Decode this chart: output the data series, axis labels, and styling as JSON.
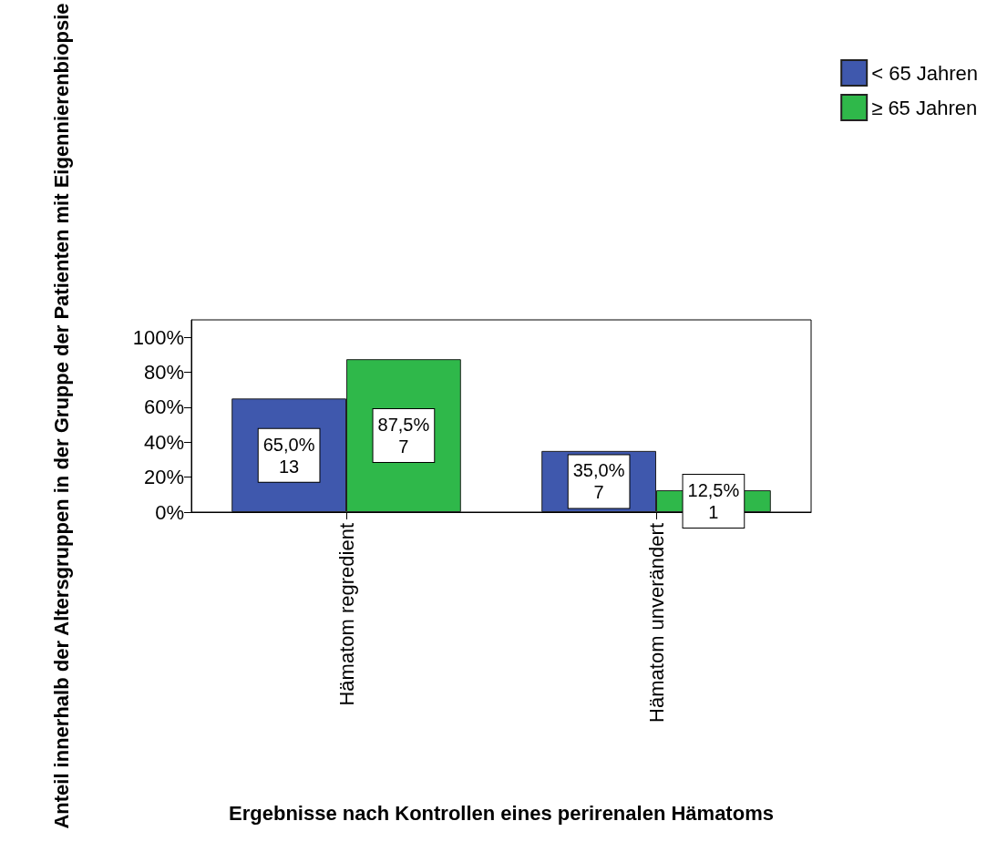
{
  "chart_data": {
    "type": "bar",
    "xlabel": "Ergebnisse nach Kontrollen eines perirenalen Hämatoms",
    "ylabel": "Anteil innerhalb der Altersgruppen in der Gruppe der Patienten mit Eigennierenbiopsie",
    "categories": [
      "Hämatom regredient",
      "Hämatom unverändert"
    ],
    "series": [
      {
        "name": "< 65 Jahren",
        "color": "#3f58ad",
        "values": [
          65,
          35
        ],
        "value_labels": [
          "65,0%\n13",
          "35,0%\n7"
        ]
      },
      {
        "name": "≥ 65 Jahren",
        "color": "#2fb84a",
        "values": [
          87.5,
          12.5
        ],
        "value_labels": [
          "87,5%\n7",
          "12,5%\n1"
        ]
      }
    ],
    "ylim": [
      0,
      110
    ],
    "yticks": [
      {
        "value": 0,
        "label": "0%"
      },
      {
        "value": 20,
        "label": "20%"
      },
      {
        "value": 40,
        "label": "40%"
      },
      {
        "value": 60,
        "label": "60%"
      },
      {
        "value": 80,
        "label": "80%"
      },
      {
        "value": 100,
        "label": "100%"
      }
    ],
    "grid": false,
    "legend": "top right"
  }
}
